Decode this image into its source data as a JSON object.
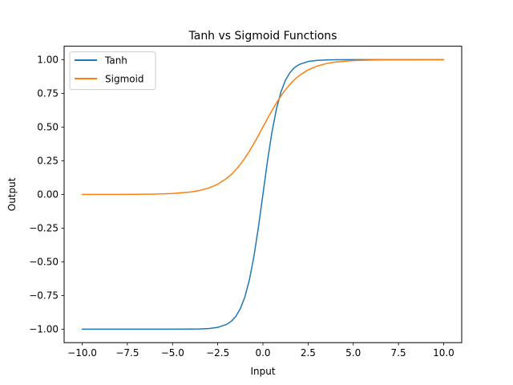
{
  "chart_data": {
    "type": "line",
    "title": "Tanh vs Sigmoid Functions",
    "xlabel": "Input",
    "ylabel": "Output",
    "xlim": [
      -11.0,
      11.0
    ],
    "ylim": [
      -1.1,
      1.1
    ],
    "xticks": [
      -10.0,
      -7.5,
      -5.0,
      -2.5,
      0.0,
      2.5,
      5.0,
      7.5,
      10.0
    ],
    "xtick_labels": [
      "−10.0",
      "−7.5",
      "−5.0",
      "−2.5",
      "0.0",
      "2.5",
      "5.0",
      "7.5",
      "10.0"
    ],
    "yticks": [
      -1.0,
      -0.75,
      -0.5,
      -0.25,
      0.0,
      0.25,
      0.5,
      0.75,
      1.0
    ],
    "ytick_labels": [
      "−1.00",
      "−0.75",
      "−0.50",
      "−0.25",
      "0.00",
      "0.25",
      "0.50",
      "0.75",
      "1.00"
    ],
    "grid": false,
    "legend_position": "top-left",
    "x": [
      -10,
      -9,
      -8,
      -7,
      -6,
      -5,
      -4,
      -3.5,
      -3,
      -2.5,
      -2,
      -1.75,
      -1.5,
      -1.25,
      -1,
      -0.75,
      -0.5,
      -0.25,
      0,
      0.25,
      0.5,
      0.75,
      1,
      1.25,
      1.5,
      1.75,
      2,
      2.5,
      3,
      3.5,
      4,
      5,
      6,
      7,
      8,
      9,
      10
    ],
    "series": [
      {
        "name": "Tanh",
        "color": "#1f77b4",
        "values": [
          -1.0,
          -1.0,
          -1.0,
          -1.0,
          -1.0,
          -0.9999,
          -0.9993,
          -0.9982,
          -0.9951,
          -0.9866,
          -0.964,
          -0.9414,
          -0.9051,
          -0.8483,
          -0.7616,
          -0.6351,
          -0.4621,
          -0.2449,
          0.0,
          0.2449,
          0.4621,
          0.6351,
          0.7616,
          0.8483,
          0.9051,
          0.9414,
          0.964,
          0.9866,
          0.9951,
          0.9982,
          0.9993,
          0.9999,
          1.0,
          1.0,
          1.0,
          1.0,
          1.0
        ]
      },
      {
        "name": "Sigmoid",
        "color": "#ff7f0e",
        "values": [
          0.0,
          0.0001,
          0.0003,
          0.0009,
          0.0025,
          0.0067,
          0.018,
          0.0293,
          0.0474,
          0.0759,
          0.1192,
          0.148,
          0.1824,
          0.2227,
          0.2689,
          0.3208,
          0.3775,
          0.4378,
          0.5,
          0.5622,
          0.6225,
          0.6792,
          0.7311,
          0.7773,
          0.8176,
          0.852,
          0.8808,
          0.9241,
          0.9526,
          0.9707,
          0.982,
          0.9933,
          0.9975,
          0.9991,
          0.9997,
          0.9999,
          1.0
        ]
      }
    ]
  }
}
